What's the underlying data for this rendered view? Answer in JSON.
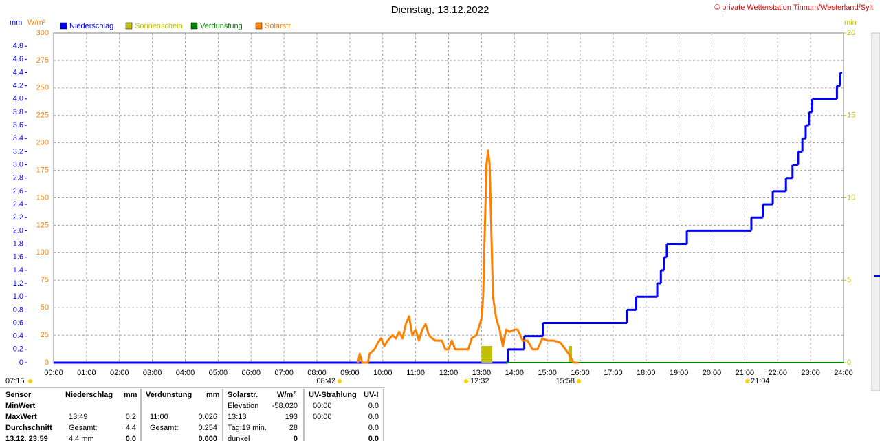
{
  "chart_data": {
    "type": "line",
    "title": "Dienstag, 13.12.2022",
    "subtitle": "© private Wetterstation Tinnum/Westerland/Sylt",
    "y_label": "mm",
    "y2_label": "W/m²",
    "y3_label": "min",
    "xlim": [
      0,
      24
    ],
    "xticks": [
      {
        "value": 0,
        "label": "00:00"
      },
      {
        "value": 1,
        "label": "01:00"
      },
      {
        "value": 2,
        "label": "02:00"
      },
      {
        "value": 3,
        "label": "03:00"
      },
      {
        "value": 4,
        "label": "04:00"
      },
      {
        "value": 5,
        "label": "05:00"
      },
      {
        "value": 6,
        "label": "06:00"
      },
      {
        "value": 7,
        "label": "07:00"
      },
      {
        "value": 8,
        "label": "08:00"
      },
      {
        "value": 9,
        "label": "09:00"
      },
      {
        "value": 10,
        "label": "10:00"
      },
      {
        "value": 11,
        "label": "11:00"
      },
      {
        "value": 12,
        "label": "12:00"
      },
      {
        "value": 13,
        "label": "13:00"
      },
      {
        "value": 14,
        "label": "14:00"
      },
      {
        "value": 15,
        "label": "15:00"
      },
      {
        "value": 16,
        "label": "16:00"
      },
      {
        "value": 17,
        "label": "17:00"
      },
      {
        "value": 18,
        "label": "18:00"
      },
      {
        "value": 19,
        "label": "19:00"
      },
      {
        "value": 20,
        "label": "20:00"
      },
      {
        "value": 21,
        "label": "21:00"
      },
      {
        "value": 22,
        "label": "22:00"
      },
      {
        "value": 23,
        "label": "23:00"
      },
      {
        "value": 24,
        "label": "24:00"
      }
    ],
    "ylim": [
      0,
      5
    ],
    "yticks": [
      0,
      0.2,
      0.4,
      0.6,
      0.8,
      {
        "value": 1,
        "label": "1.0"
      },
      1.2,
      1.4,
      1.6,
      1.8,
      {
        "value": 2,
        "label": "2.0"
      },
      2.2,
      2.4,
      2.6,
      2.8,
      {
        "value": 3,
        "label": "3.0"
      },
      3.2,
      3.4,
      3.6,
      3.8,
      {
        "value": 4,
        "label": "4.0"
      },
      4.2,
      4.4,
      4.6,
      4.8
    ],
    "y2lim": [
      0,
      300
    ],
    "y2ticks": [
      0,
      25,
      50,
      75,
      100,
      125,
      150,
      175,
      200,
      225,
      250,
      275,
      300
    ],
    "y3lim": [
      0,
      20
    ],
    "y3ticks": [
      0,
      5,
      10,
      15,
      20
    ],
    "grid": true,
    "series": [
      {
        "name": "Niederschlag",
        "color": "#0000ff",
        "axis": "y",
        "style": "step",
        "x": [
          0,
          13.8,
          14.3,
          14.87,
          17.42,
          17.7,
          18.34,
          18.45,
          18.55,
          18.63,
          19.24,
          21.2,
          21.55,
          21.85,
          22.25,
          22.45,
          22.62,
          22.75,
          22.85,
          22.95,
          23.05,
          23.8,
          23.9
        ],
        "values": [
          0,
          0.2,
          0.4,
          0.6,
          0.8,
          1.0,
          1.2,
          1.4,
          1.6,
          1.8,
          2.0,
          2.2,
          2.4,
          2.6,
          2.8,
          3.0,
          3.2,
          3.4,
          3.6,
          3.8,
          4.0,
          4.2,
          4.4
        ]
      },
      {
        "name": "Sonnenschein",
        "color": "#c0c000",
        "axis": "y3",
        "style": "bar",
        "x": [
          13.0,
          15.65
        ],
        "x_end": [
          13.33,
          15.75
        ],
        "values": [
          1,
          1
        ]
      },
      {
        "name": "Verdunstung",
        "color": "#008000",
        "axis": "y",
        "style": "line",
        "x": [
          13.75,
          24
        ],
        "values": [
          0,
          0
        ]
      },
      {
        "name": "Solarstr.",
        "color": "#ff8000",
        "axis": "y2",
        "style": "line",
        "x": [
          9.25,
          9.3,
          9.38,
          9.55,
          9.6,
          9.75,
          9.85,
          9.95,
          10.05,
          10.15,
          10.3,
          10.4,
          10.5,
          10.6,
          10.7,
          10.8,
          10.9,
          11.0,
          11.1,
          11.2,
          11.3,
          11.4,
          11.5,
          11.6,
          11.8,
          11.9,
          12.0,
          12.1,
          12.2,
          12.4,
          12.6,
          12.7,
          12.85,
          12.95,
          13.0,
          13.05,
          13.1,
          13.15,
          13.2,
          13.25,
          13.3,
          13.35,
          13.45,
          13.55,
          13.65,
          13.75,
          13.85,
          14.0,
          14.1,
          14.25,
          14.4,
          14.55,
          14.7,
          14.85,
          15.0,
          15.2,
          15.4,
          15.55,
          15.65,
          15.8,
          15.95
        ],
        "values": [
          0,
          8,
          0,
          0,
          8,
          12,
          18,
          22,
          15,
          20,
          25,
          22,
          28,
          22,
          35,
          42,
          25,
          30,
          20,
          30,
          35,
          25,
          22,
          20,
          20,
          12,
          12,
          20,
          12,
          12,
          12,
          22,
          25,
          35,
          40,
          60,
          120,
          180,
          193,
          180,
          120,
          60,
          40,
          30,
          15,
          30,
          28,
          30,
          30,
          20,
          20,
          12,
          12,
          22,
          20,
          20,
          18,
          12,
          8,
          0,
          0
        ]
      }
    ],
    "annotations": [
      "07:15",
      "08:42",
      "12:32",
      "15:58",
      "21:04"
    ]
  },
  "table": {
    "columns": [
      {
        "name": "Sensor"
      },
      {
        "name": "Niederschlag",
        "unit": "mm"
      },
      {
        "name": "Verdunstung",
        "unit": "mm"
      },
      {
        "name": "Solarstr.",
        "unit": "W/m²"
      },
      {
        "name": "UV-Strahlung",
        "unit": "UV-I"
      }
    ],
    "rows": [
      {
        "label": "MinWert",
        "cells": [
          null,
          null,
          [
            "Elevation",
            "-58.020"
          ],
          [
            "00:00",
            "0.0"
          ]
        ]
      },
      {
        "label": "MaxWert",
        "cells": [
          [
            "13:49",
            "0.2"
          ],
          [
            "11:00",
            "0.026"
          ],
          [
            "13:13",
            "193"
          ],
          [
            "00:00",
            "0.0"
          ]
        ]
      },
      {
        "label": "Durchschnitt",
        "cells": [
          [
            "Gesamt:",
            "4.4"
          ],
          [
            "Gesamt:",
            "0.254"
          ],
          [
            "Tag:19 min.",
            "28"
          ],
          [
            null,
            "0.0"
          ]
        ]
      },
      {
        "label": "13.12. 23:59",
        "cells": [
          [
            "4.4 mm",
            "0.0"
          ],
          [
            null,
            "0.000"
          ],
          [
            "dunkel",
            "0"
          ],
          [
            null,
            "0.0"
          ]
        ]
      }
    ]
  }
}
